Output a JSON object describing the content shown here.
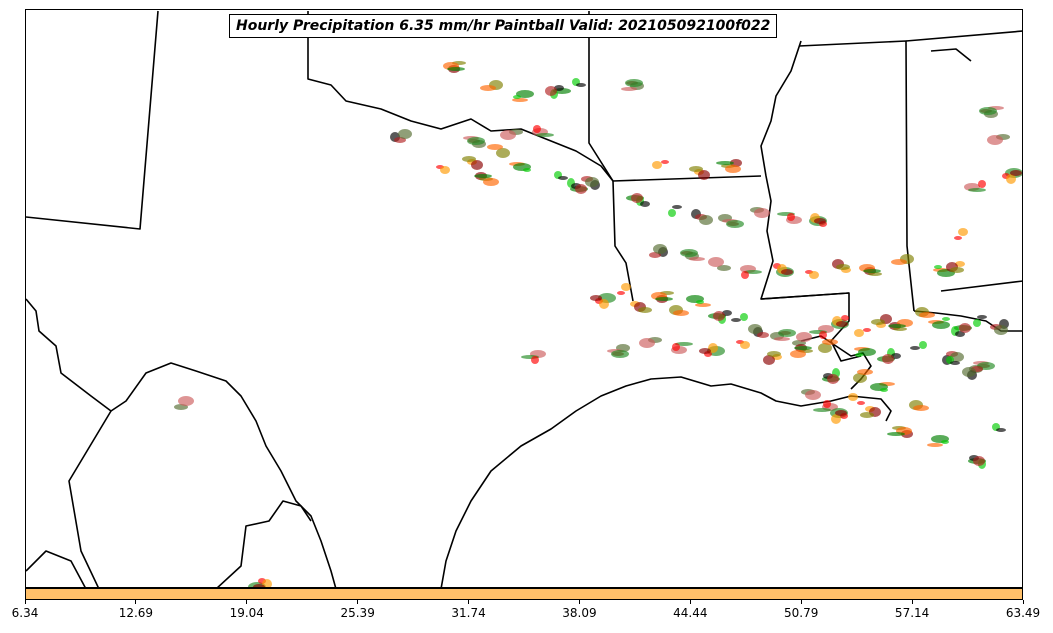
{
  "title": "Hourly Precipitation 6.35 mm/hr Paintball Valid: 202105092100f022",
  "colorbar": {
    "color": "#ffc06a",
    "ticks": [
      "6.34",
      "12.69",
      "19.04",
      "25.39",
      "31.74",
      "38.09",
      "44.44",
      "50.79",
      "57.14",
      "63.49"
    ]
  },
  "member_colors": [
    "#ff0000",
    "#ff9a00",
    "#8b0000",
    "#808000",
    "#ff6600",
    "#008000",
    "#00cc00",
    "#000000",
    "#b22222",
    "#556b2f",
    "#cd5c5c",
    "#228b22"
  ]
}
